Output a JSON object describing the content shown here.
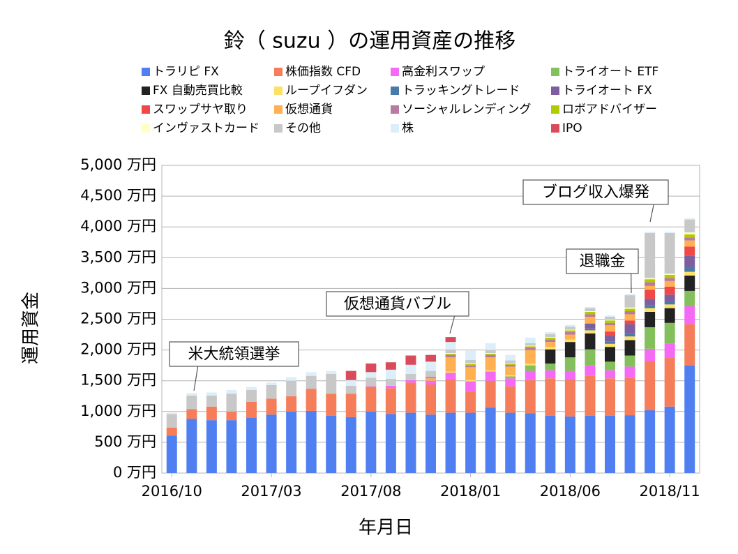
{
  "chart_data": {
    "type": "stacked_bar",
    "title": "鈴（ suzu ）の運用資産の推移",
    "xlabel": "年月日",
    "ylabel": "運用資金",
    "categories": [
      "2016/10",
      null,
      null,
      null,
      null,
      "2017/03",
      null,
      null,
      null,
      null,
      "2017/08",
      null,
      null,
      null,
      null,
      "2018/01",
      null,
      null,
      null,
      null,
      "2018/06",
      null,
      null,
      null,
      null,
      "2018/11",
      null
    ],
    "ylim": [
      0,
      5000
    ],
    "yticks": [
      {
        "value": 0,
        "label": "0 万円"
      },
      {
        "value": 500,
        "label": "500 万円"
      },
      {
        "value": 1000,
        "label": "1,000 万円"
      },
      {
        "value": 1500,
        "label": "1,500 万円"
      },
      {
        "value": 2000,
        "label": "2,000 万円"
      },
      {
        "value": 2500,
        "label": "2,500 万円"
      },
      {
        "value": 3000,
        "label": "3,000 万円"
      },
      {
        "value": 3500,
        "label": "3,500 万円"
      },
      {
        "value": 4000,
        "label": "4,000 万円"
      },
      {
        "value": 4500,
        "label": "4,500 万円"
      },
      {
        "value": 5000,
        "label": "5,000 万円"
      }
    ],
    "grid": true,
    "annotations": [
      "米大統領選挙",
      "仮想通貨バブル",
      "退職金",
      "ブログ収入爆発"
    ],
    "series": [
      {
        "name": "トラリピ FX",
        "color": "#4f7ff0",
        "values": [
          610,
          880,
          860,
          860,
          900,
          950,
          1000,
          1010,
          930,
          910,
          1000,
          960,
          980,
          950,
          980,
          980,
          1060,
          980,
          970,
          930,
          920,
          930,
          930,
          940,
          1020,
          1080,
          1750
        ]
      },
      {
        "name": "株価指数 CFD",
        "color": "#f67d5a",
        "values": [
          130,
          160,
          220,
          140,
          260,
          260,
          250,
          360,
          360,
          380,
          400,
          420,
          490,
          490,
          550,
          340,
          440,
          430,
          540,
          610,
          610,
          650,
          610,
          610,
          800,
          790,
          670
        ]
      },
      {
        "name": "高金利スワップ",
        "color": "#f56af5",
        "values": [
          0,
          0,
          0,
          0,
          0,
          0,
          0,
          0,
          0,
          0,
          10,
          40,
          40,
          60,
          100,
          170,
          150,
          130,
          150,
          130,
          130,
          170,
          130,
          180,
          200,
          230,
          290
        ]
      },
      {
        "name": "トライオート ETF",
        "color": "#83c05b",
        "values": [
          0,
          0,
          0,
          0,
          0,
          0,
          0,
          0,
          0,
          0,
          0,
          0,
          0,
          0,
          0,
          0,
          0,
          30,
          90,
          110,
          220,
          260,
          140,
          180,
          350,
          340,
          250
        ]
      },
      {
        "name": "FX 自動売買比較",
        "color": "#222222",
        "values": [
          0,
          0,
          0,
          0,
          0,
          0,
          0,
          0,
          0,
          0,
          0,
          0,
          0,
          0,
          0,
          0,
          0,
          0,
          0,
          230,
          250,
          260,
          240,
          250,
          250,
          240,
          250
        ]
      },
      {
        "name": "ループイフダン",
        "color": "#ffe066",
        "values": [
          0,
          0,
          0,
          0,
          0,
          0,
          0,
          0,
          0,
          0,
          0,
          0,
          0,
          0,
          20,
          20,
          20,
          20,
          30,
          40,
          40,
          50,
          50,
          60,
          60,
          60,
          60
        ]
      },
      {
        "name": "トラッキングトレード",
        "color": "#4a7aa8",
        "values": [
          0,
          0,
          0,
          0,
          0,
          0,
          0,
          0,
          0,
          0,
          0,
          0,
          0,
          0,
          0,
          0,
          0,
          0,
          0,
          0,
          0,
          30,
          40,
          50,
          50,
          60,
          80
        ]
      },
      {
        "name": "トライオート FX",
        "color": "#7e5e9e",
        "values": [
          0,
          0,
          0,
          0,
          0,
          0,
          0,
          0,
          0,
          0,
          0,
          0,
          0,
          0,
          0,
          0,
          0,
          0,
          0,
          0,
          0,
          80,
          100,
          150,
          100,
          100,
          180
        ]
      },
      {
        "name": "スワップサヤ取り",
        "color": "#f04848",
        "values": [
          0,
          0,
          0,
          0,
          0,
          0,
          0,
          0,
          0,
          0,
          0,
          0,
          0,
          0,
          0,
          0,
          0,
          0,
          0,
          0,
          0,
          0,
          60,
          60,
          150,
          130,
          150
        ]
      },
      {
        "name": "仮想通貨",
        "color": "#ffb050",
        "values": [
          0,
          0,
          0,
          0,
          0,
          0,
          0,
          0,
          0,
          0,
          0,
          0,
          0,
          40,
          230,
          210,
          210,
          140,
          220,
          80,
          80,
          110,
          100,
          100,
          60,
          90,
          100
        ]
      },
      {
        "name": "ソーシャルレンディング",
        "color": "#b87aa0",
        "values": [
          0,
          0,
          0,
          0,
          0,
          0,
          0,
          0,
          0,
          0,
          0,
          0,
          0,
          20,
          40,
          30,
          40,
          30,
          40,
          40,
          40,
          40,
          40,
          50,
          60,
          50,
          50
        ]
      },
      {
        "name": "ロボアドバイザー",
        "color": "#b0cc00",
        "values": [
          0,
          0,
          0,
          0,
          0,
          0,
          0,
          0,
          0,
          0,
          0,
          0,
          0,
          0,
          20,
          20,
          20,
          20,
          20,
          30,
          30,
          40,
          40,
          40,
          50,
          50,
          50
        ]
      },
      {
        "name": "インヴァストカード",
        "color": "#ffffc8",
        "values": [
          0,
          0,
          0,
          0,
          0,
          0,
          0,
          0,
          0,
          0,
          0,
          0,
          0,
          0,
          10,
          10,
          10,
          10,
          10,
          10,
          10,
          10,
          10,
          20,
          20,
          20,
          30
        ]
      },
      {
        "name": "その他",
        "color": "#c8c8c8",
        "values": [
          220,
          220,
          180,
          290,
          190,
          220,
          250,
          210,
          320,
          130,
          140,
          110,
          100,
          100,
          60,
          60,
          50,
          40,
          40,
          50,
          50,
          50,
          50,
          200,
          730,
          660,
          210
        ]
      },
      {
        "name": "株",
        "color": "#dceefa",
        "values": [
          20,
          40,
          50,
          60,
          50,
          40,
          60,
          60,
          50,
          90,
          90,
          150,
          150,
          150,
          120,
          150,
          110,
          90,
          90,
          30,
          30,
          20,
          20,
          20,
          20,
          20,
          20
        ]
      },
      {
        "name": "IPO",
        "color": "#d94a5a",
        "values": [
          0,
          0,
          0,
          0,
          0,
          0,
          0,
          0,
          0,
          150,
          140,
          120,
          150,
          110,
          80,
          0,
          0,
          0,
          0,
          0,
          0,
          0,
          0,
          0,
          0,
          0,
          0
        ]
      }
    ]
  }
}
